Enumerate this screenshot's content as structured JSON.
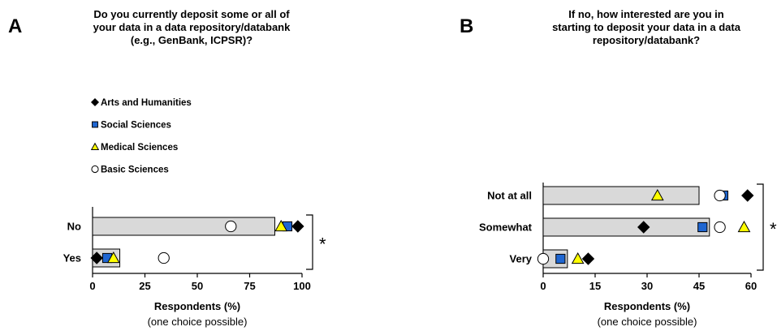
{
  "colors": {
    "bar_fill": "#d9d9d9",
    "bar_stroke": "#000000",
    "arts": "#000000",
    "social": "#1f66d1",
    "medical": "#ffff00",
    "basic": "#ffffff"
  },
  "legend": [
    {
      "key": "arts",
      "marker": "diamond",
      "label": "Arts and Humanities"
    },
    {
      "key": "social",
      "marker": "square",
      "label": "Social Sciences"
    },
    {
      "key": "medical",
      "marker": "triangle",
      "label": "Medical Sciences"
    },
    {
      "key": "basic",
      "marker": "circle",
      "label": "Basic Sciences"
    }
  ],
  "chart_data": [
    {
      "panel": "A",
      "type": "bar",
      "orientation": "horizontal",
      "title_lines": [
        "Do you currently deposit some or all of",
        "your data in a data repository/databank",
        "(e.g., GenBank, ICPSR)?"
      ],
      "categories": [
        "No",
        "Yes"
      ],
      "values": [
        87,
        13
      ],
      "points": [
        {
          "name": "Arts and Humanities",
          "values": [
            98,
            2
          ]
        },
        {
          "name": "Social Sciences",
          "values": [
            93,
            7
          ]
        },
        {
          "name": "Medical Sciences",
          "values": [
            90,
            10
          ]
        },
        {
          "name": "Basic Sciences",
          "values": [
            66,
            34
          ]
        }
      ],
      "xlim": [
        0,
        100
      ],
      "ticks": [
        "0",
        "25",
        "50",
        "75",
        "100"
      ],
      "xlabel": "Respondents (%)",
      "xsublabel": "(one choice possible)",
      "significance": "*"
    },
    {
      "panel": "B",
      "type": "bar",
      "orientation": "horizontal",
      "title_lines": [
        "If no, how interested are you in",
        "starting to  deposit your data in a data",
        "repository/databank?"
      ],
      "categories": [
        "Not at all",
        "Somewhat",
        "Very"
      ],
      "values": [
        45,
        48,
        7
      ],
      "points": [
        {
          "name": "Arts and Humanities",
          "values": [
            59,
            29,
            13
          ]
        },
        {
          "name": "Social Sciences",
          "values": [
            52,
            46,
            5
          ]
        },
        {
          "name": "Medical Sciences",
          "values": [
            33,
            58,
            10
          ]
        },
        {
          "name": "Basic Sciences",
          "values": [
            51,
            51,
            0
          ]
        }
      ],
      "xlim": [
        0,
        60
      ],
      "ticks": [
        "0",
        "15",
        "30",
        "45",
        "60"
      ],
      "xlabel": "Respondents (%)",
      "xsublabel": "(one choice possible)",
      "significance": "*"
    }
  ]
}
